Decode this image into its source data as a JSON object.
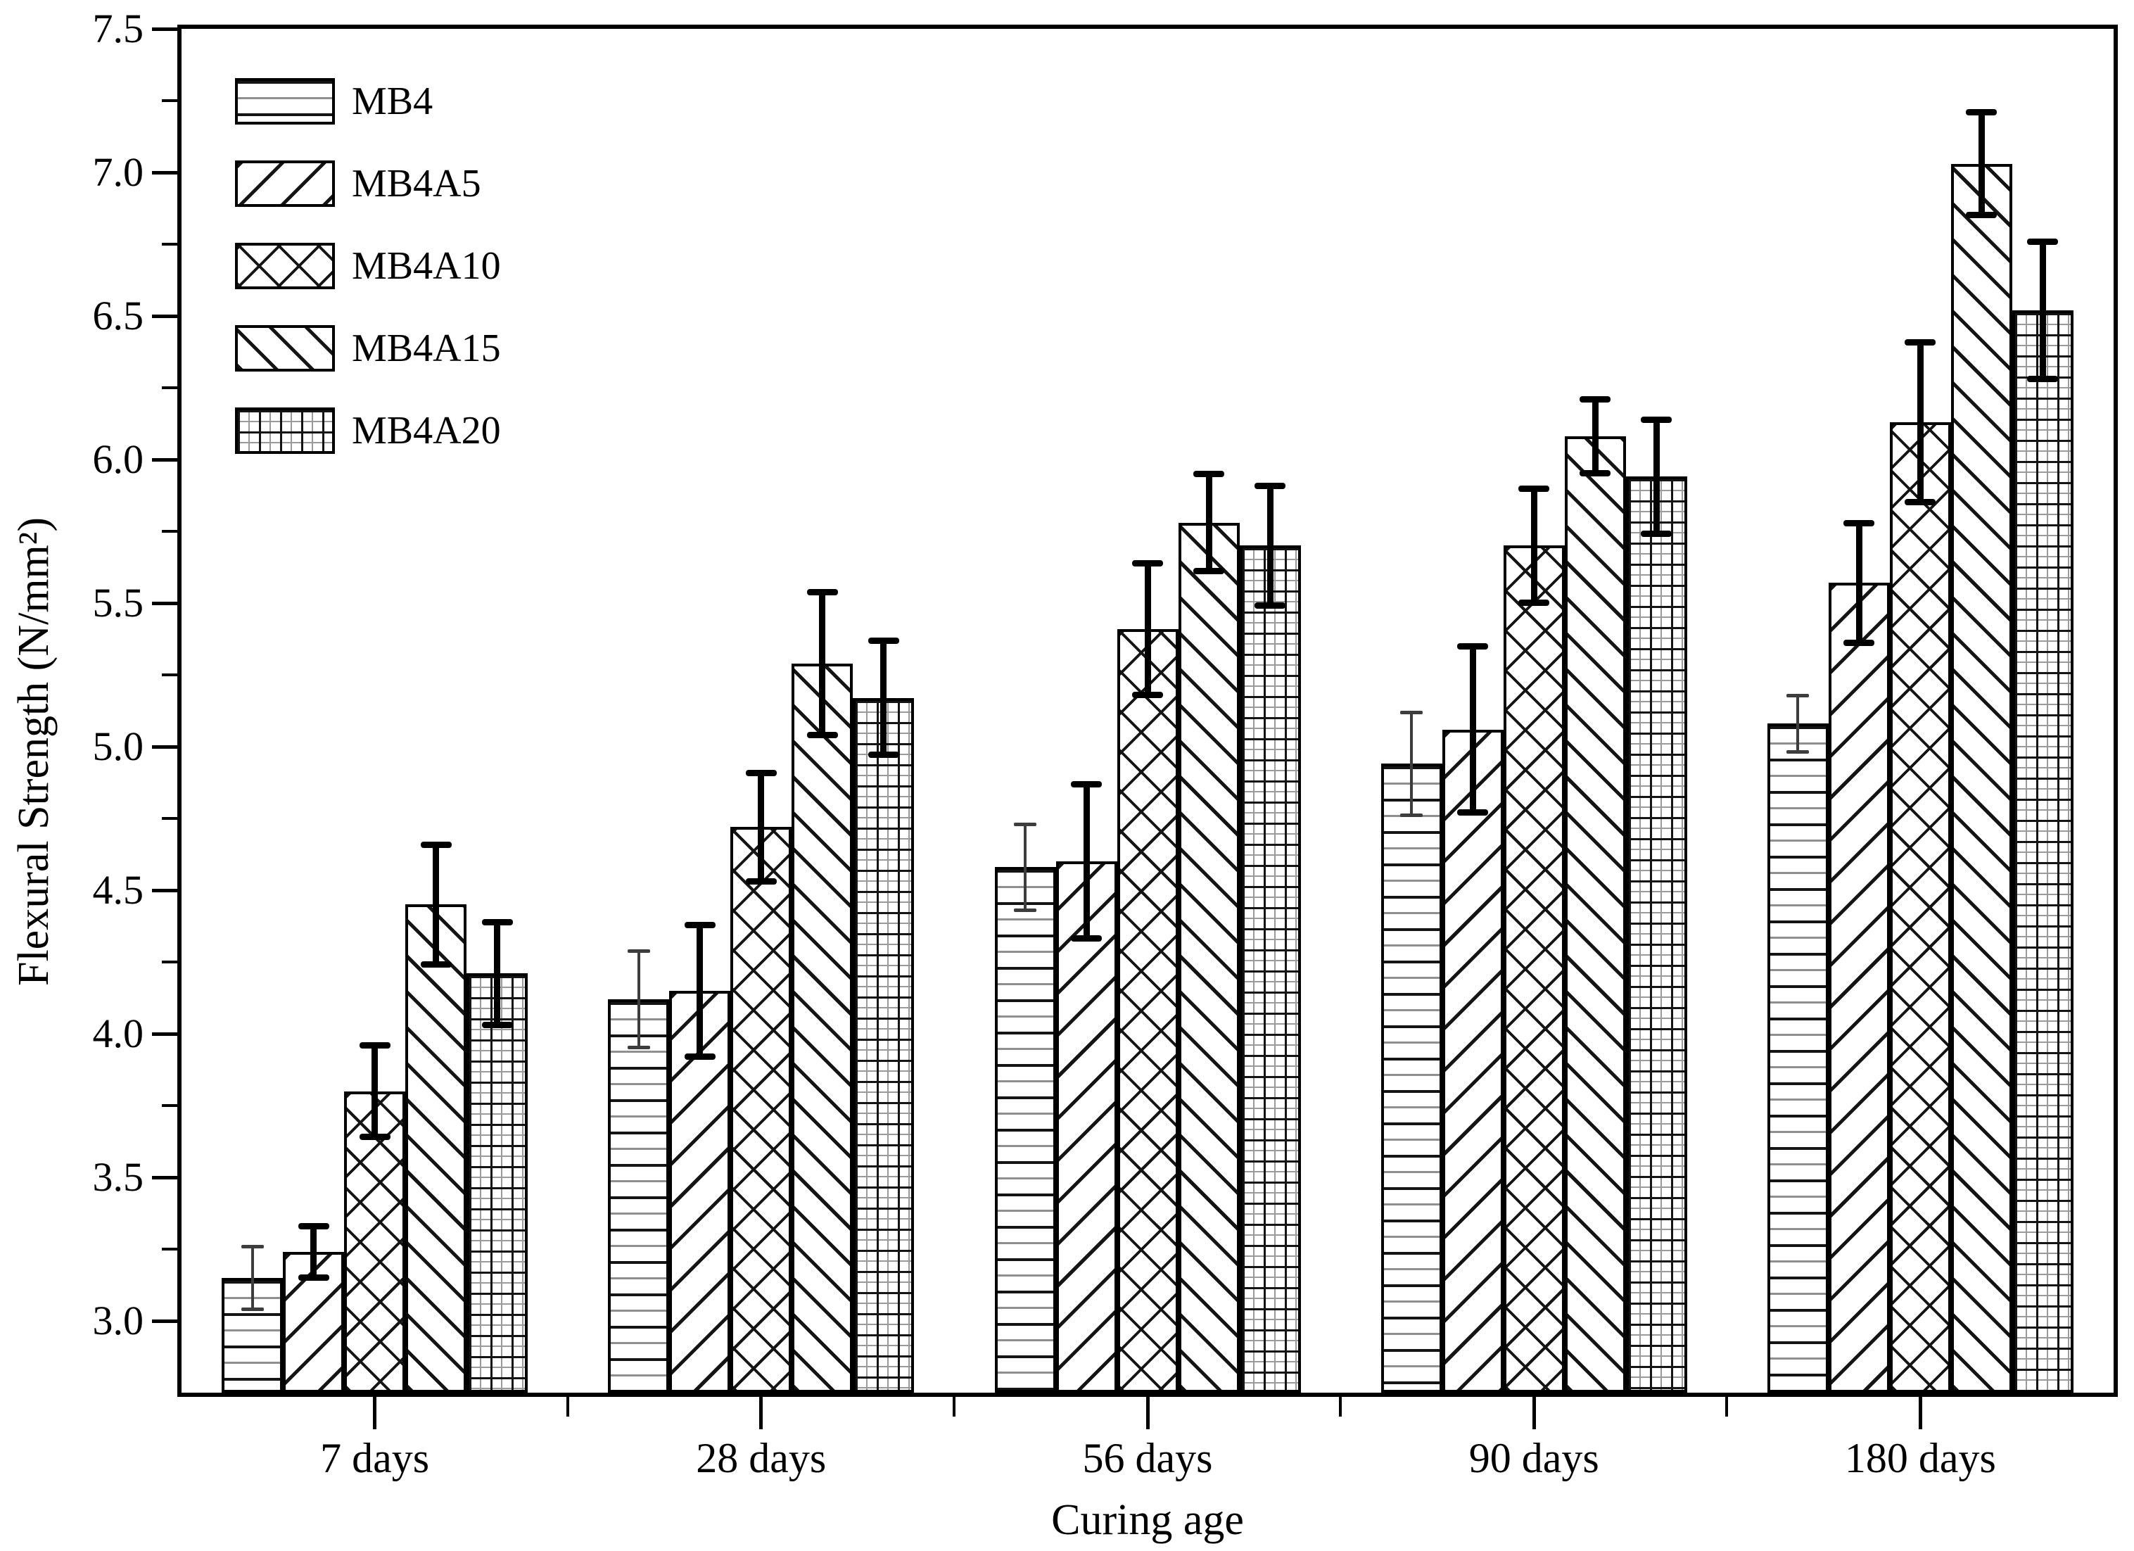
{
  "figure": {
    "background": "#ffffff",
    "foreground": "#000000",
    "mb4_error_color": "#3d3d3d"
  },
  "chart_data": {
    "type": "bar",
    "title": "",
    "xlabel": "Curing age",
    "ylabel": "Flexural Strength (N/mm²)",
    "categories": [
      "7 days",
      "28 days",
      "56 days",
      "90 days",
      "180 days"
    ],
    "series": [
      {
        "name": "MB4",
        "pattern": "horizontal-lines",
        "values": [
          3.15,
          4.12,
          4.58,
          4.94,
          5.08
        ],
        "errors": [
          0.11,
          0.17,
          0.15,
          0.18,
          0.1
        ]
      },
      {
        "name": "MB4A5",
        "pattern": "diagonal-forward",
        "values": [
          3.24,
          4.15,
          4.6,
          5.06,
          5.57
        ],
        "errors": [
          0.09,
          0.23,
          0.27,
          0.29,
          0.21
        ]
      },
      {
        "name": "MB4A10",
        "pattern": "crosshatch",
        "values": [
          3.8,
          4.72,
          5.41,
          5.7,
          6.13
        ],
        "errors": [
          0.16,
          0.19,
          0.23,
          0.2,
          0.28
        ]
      },
      {
        "name": "MB4A15",
        "pattern": "diagonal-back",
        "values": [
          4.45,
          5.29,
          5.78,
          6.08,
          7.03
        ],
        "errors": [
          0.21,
          0.25,
          0.17,
          0.13,
          0.18
        ]
      },
      {
        "name": "MB4A20",
        "pattern": "grid",
        "values": [
          4.21,
          5.17,
          5.7,
          5.94,
          6.52
        ],
        "errors": [
          0.18,
          0.2,
          0.21,
          0.2,
          0.24
        ]
      }
    ],
    "y_axis": {
      "min": 2.75,
      "max": 7.5,
      "major_step": 0.5,
      "minor_step": 0.25,
      "tick_labels": [
        "3.0",
        "3.5",
        "4.0",
        "4.5",
        "5.0",
        "5.5",
        "6.0",
        "6.5",
        "7.0",
        "7.5"
      ]
    },
    "error_bars": true,
    "grid": false,
    "legend_position": "top-left"
  }
}
